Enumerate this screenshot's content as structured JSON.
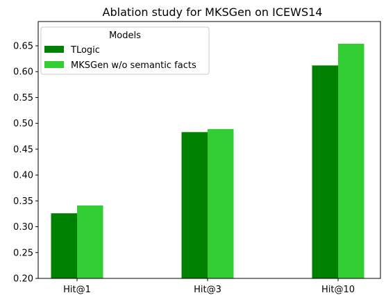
{
  "chart_data": {
    "type": "bar",
    "title": "Ablation study for MKSGen on ICEWS14",
    "xlabel": "",
    "ylabel": "",
    "categories": [
      "Hit@1",
      "Hit@3",
      "Hit@10"
    ],
    "series": [
      {
        "name": "TLogic",
        "values": [
          0.326,
          0.483,
          0.612
        ],
        "color": "#008000"
      },
      {
        "name": "MKSGen w/o semantic facts",
        "values": [
          0.341,
          0.489,
          0.654
        ],
        "color": "#32cd32"
      }
    ],
    "ylim": [
      0.2,
      0.697
    ],
    "yticks": [
      "0.20",
      "0.25",
      "0.30",
      "0.35",
      "0.40",
      "0.45",
      "0.50",
      "0.55",
      "0.60",
      "0.65"
    ],
    "grid": false,
    "legend": {
      "title": "Models",
      "placement": "top-left"
    }
  }
}
